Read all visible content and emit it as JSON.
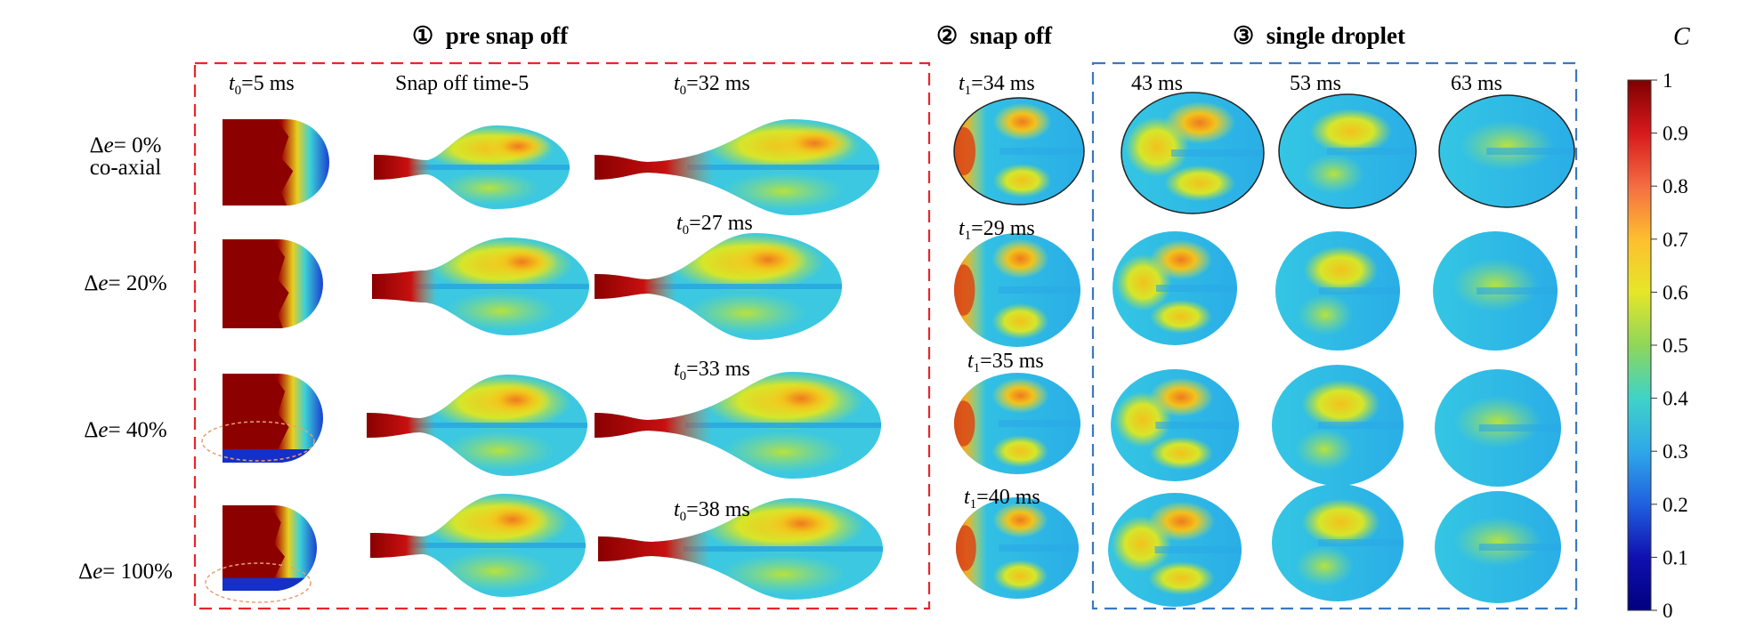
{
  "sections": [
    {
      "num": "①",
      "title": "pre snap off"
    },
    {
      "num": "②",
      "title": "snap off"
    },
    {
      "num": "③",
      "title": "single droplet"
    }
  ],
  "column_labels": {
    "t0_5": {
      "var": "t",
      "sub": "0",
      "rest": "=5 ms"
    },
    "snap_off_time": "Snap off time-5",
    "t0_32": {
      "var": "t",
      "sub": "0",
      "rest": "=32 ms"
    },
    "t1_34": {
      "var": "t",
      "sub": "1",
      "rest": "=34 ms"
    },
    "ms43": "43 ms",
    "ms53": "53 ms",
    "ms63": "63 ms"
  },
  "row_time_labels": {
    "row2_t0": {
      "var": "t",
      "sub": "0",
      "rest": "=27 ms"
    },
    "row2_t1": {
      "var": "t",
      "sub": "1",
      "rest": "=29 ms"
    },
    "row3_t0": {
      "var": "t",
      "sub": "0",
      "rest": "=33 ms"
    },
    "row3_t1": {
      "var": "t",
      "sub": "1",
      "rest": "=35 ms"
    },
    "row4_t0": {
      "var": "t",
      "sub": "0",
      "rest": "=38 ms"
    },
    "row4_t1": {
      "var": "t",
      "sub": "1",
      "rest": "=40 ms"
    }
  },
  "rows": [
    {
      "label_sym": "Δ",
      "label_var": "e",
      "label_val": "= 0%",
      "label_extra": "co-axial"
    },
    {
      "label_sym": "Δ",
      "label_var": "e",
      "label_val": "= 20%",
      "label_extra": ""
    },
    {
      "label_sym": "Δ",
      "label_var": "e",
      "label_val": "= 40%",
      "label_extra": ""
    },
    {
      "label_sym": "Δ",
      "label_var": "e",
      "label_val": "= 100%",
      "label_extra": ""
    }
  ],
  "colorbar": {
    "title": "C",
    "ticks": [
      "1",
      "0.9",
      "0.8",
      "0.7",
      "0.6",
      "0.5",
      "0.4",
      "0.3",
      "0.2",
      "0.1",
      "0"
    ],
    "colors": [
      "#7f0000",
      "#d7191c",
      "#f46d43",
      "#fdbf2f",
      "#e6e629",
      "#8fd65a",
      "#3fd3c8",
      "#2fa8e8",
      "#2060e0",
      "#1010b0",
      "#00007f"
    ]
  },
  "colors": {
    "pre_snap_box": "#e8262b",
    "single_droplet_box": "#3b78c0",
    "highlight_ellipse": "#e6a070",
    "field_base": "#3cc8e0",
    "field_high": "#e8d020",
    "field_peak": "#f07020",
    "core": "#8a0000"
  }
}
